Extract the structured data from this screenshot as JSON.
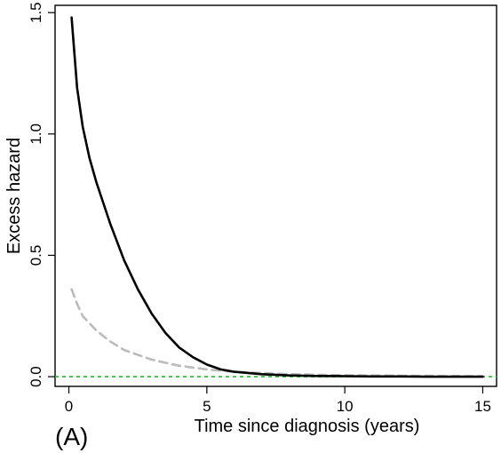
{
  "panel_label": "(A)",
  "chart_data": {
    "type": "line",
    "title": "",
    "xlabel": "Time since diagnosis (years)",
    "ylabel": "Excess hazard",
    "xlim": [
      -0.5,
      15.5
    ],
    "ylim": [
      -0.04,
      1.53
    ],
    "xticks": [
      "0",
      "5",
      "10",
      "15"
    ],
    "yticks": [
      "0.0",
      "0.5",
      "1.0",
      "1.5"
    ],
    "grid": false,
    "legend": "none",
    "reference_line": {
      "y": 0,
      "color": "#22bb22",
      "style": "dashed"
    },
    "series": [
      {
        "color": "#000000",
        "style": "solid",
        "x": [
          0.1,
          0.3,
          0.5,
          0.75,
          1,
          1.5,
          2,
          2.5,
          3,
          3.5,
          4,
          4.5,
          5,
          5.5,
          6,
          7,
          8,
          9,
          10,
          11,
          12,
          13,
          14,
          15
        ],
        "y": [
          1.48,
          1.19,
          1.03,
          0.9,
          0.8,
          0.63,
          0.48,
          0.36,
          0.26,
          0.18,
          0.12,
          0.08,
          0.05,
          0.03,
          0.02,
          0.01,
          0.005,
          0.003,
          0.002,
          0.001,
          0.001,
          0.0,
          0.0,
          0.0
        ]
      },
      {
        "color": "#bbbbbb",
        "style": "dashed",
        "x": [
          0.1,
          0.3,
          0.5,
          1,
          1.5,
          2,
          2.5,
          3,
          4,
          5,
          6,
          7,
          8,
          10,
          12,
          15
        ],
        "y": [
          0.36,
          0.3,
          0.25,
          0.19,
          0.145,
          0.11,
          0.09,
          0.07,
          0.045,
          0.03,
          0.02,
          0.015,
          0.01,
          0.006,
          0.004,
          0.002
        ]
      }
    ]
  }
}
